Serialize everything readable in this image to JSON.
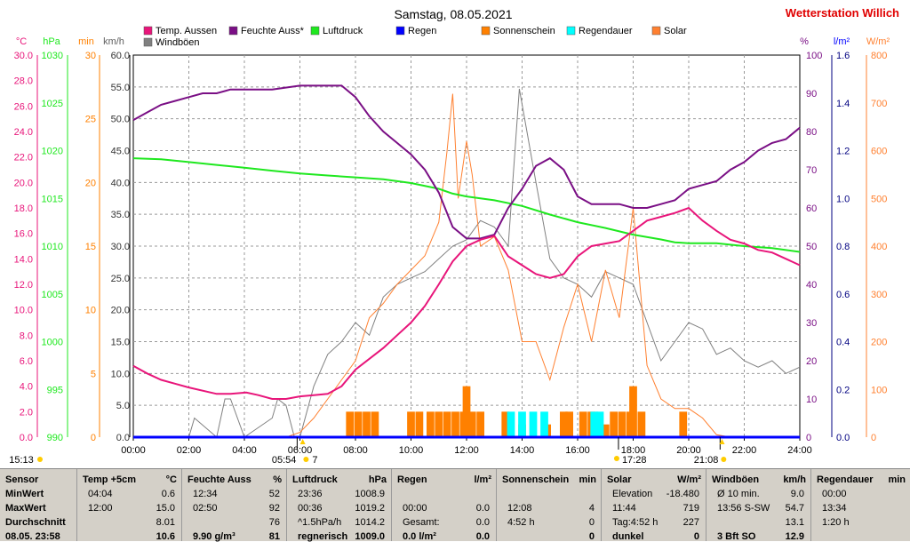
{
  "title": "Samstag, 08.05.2021",
  "station": "Wetterstation Willich",
  "colors": {
    "temp": "#e8157a",
    "humidity": "#7a0f85",
    "pressure": "#1fe81f",
    "rain": "#0000ff",
    "sunshine": "#ff8000",
    "raindur": "#00ffff",
    "solar": "#ff8030",
    "wind": "#808080",
    "titlered": "#e00000"
  },
  "legend": [
    {
      "label": "Temp. Aussen",
      "color": "#e8157a"
    },
    {
      "label": "Feuchte Auss*",
      "color": "#7a0f85"
    },
    {
      "label": "Luftdruck",
      "color": "#1fe81f"
    },
    {
      "label": "Regen",
      "color": "#0000ff"
    },
    {
      "label": "Sonnenschein",
      "color": "#ff8000"
    },
    {
      "label": "Regendauer",
      "color": "#00ffff"
    },
    {
      "label": "Solar",
      "color": "#ff8030"
    },
    {
      "label": "Windböen",
      "color": "#808080"
    }
  ],
  "axes": {
    "left_units": [
      "°C",
      "hPa",
      "min",
      "km/h"
    ],
    "right_units": [
      "%",
      "l/m²",
      "W/m²"
    ],
    "temp_ticks": [
      "30.0",
      "28.0",
      "26.0",
      "24.0",
      "22.0",
      "20.0",
      "18.0",
      "16.0",
      "14.0",
      "12.0",
      "10.0",
      "8.0",
      "6.0",
      "4.0",
      "2.0",
      "0.0"
    ],
    "press_ticks": [
      "1030",
      "1025",
      "1020",
      "1015",
      "1010",
      "1005",
      "1000",
      "995",
      "990"
    ],
    "min_ticks": [
      "30",
      "25",
      "20",
      "15",
      "10",
      "5",
      "0"
    ],
    "kmh_ticks": [
      "60.0",
      "55.0",
      "50.0",
      "45.0",
      "40.0",
      "35.0",
      "30.0",
      "25.0",
      "20.0",
      "15.0",
      "10.0",
      "5.0",
      "0.0"
    ],
    "hum_ticks": [
      "100",
      "90",
      "80",
      "70",
      "60",
      "50",
      "40",
      "30",
      "20",
      "10",
      "0"
    ],
    "rain_ticks": [
      "1.6",
      "1.4",
      "1.2",
      "1.0",
      "0.8",
      "0.6",
      "0.4",
      "0.2",
      "0.0"
    ],
    "solar_ticks": [
      "800",
      "700",
      "600",
      "500",
      "400",
      "300",
      "200",
      "100",
      "0"
    ],
    "x_ticks": [
      "00:00",
      "02:00",
      "04:00",
      "06:00",
      "08:00",
      "10:00",
      "12:00",
      "14:00",
      "16:00",
      "18:00",
      "20:00",
      "22:00",
      "24:00"
    ]
  },
  "markers": {
    "now": "15:13",
    "sunrise": "05:54",
    "sunrise_extra": "7",
    "moonset": "17:28",
    "sunset": "21:08"
  },
  "chart_data": {
    "type": "line",
    "x_range": [
      "00:00",
      "24:00"
    ],
    "series": [
      {
        "name": "Temp. Aussen",
        "unit": "°C",
        "ylim": [
          0,
          30
        ],
        "x": [
          0,
          0.5,
          1,
          1.5,
          2,
          3,
          3.5,
          4.07,
          4.5,
          5,
          5.5,
          6,
          6.5,
          7,
          7.5,
          8,
          9,
          9.5,
          10,
          10.5,
          11,
          11.5,
          12,
          12.5,
          13,
          13.5,
          14,
          14.5,
          15,
          15.5,
          16,
          16.5,
          17,
          17.5,
          18,
          18.5,
          19,
          19.5,
          20,
          20.5,
          21,
          21.5,
          22,
          22.5,
          23,
          23.5,
          24
        ],
        "y": [
          5.6,
          5.0,
          4.5,
          4.2,
          3.9,
          3.4,
          3.4,
          3.5,
          3.3,
          3.0,
          3.0,
          3.2,
          3.3,
          3.4,
          4.0,
          5.3,
          7.0,
          8.0,
          9.0,
          10.3,
          12.0,
          13.8,
          15.0,
          15.5,
          15.8,
          14.2,
          13.5,
          12.8,
          12.5,
          12.8,
          14.2,
          15.0,
          15.2,
          15.4,
          16.2,
          17.0,
          17.3,
          17.6,
          18.0,
          17.0,
          16.2,
          15.5,
          15.2,
          14.7,
          14.5,
          14.0,
          13.5
        ]
      },
      {
        "name": "Feuchte Auss*",
        "unit": "%",
        "ylim": [
          0,
          100
        ],
        "x": [
          0,
          0.5,
          1,
          1.5,
          2,
          2.5,
          3,
          3.5,
          4,
          5,
          6,
          6.5,
          7,
          7.5,
          8,
          8.5,
          9,
          9.5,
          10,
          10.5,
          11,
          11.5,
          12,
          12.5,
          13,
          13.5,
          14,
          14.5,
          15,
          15.5,
          16,
          16.5,
          17,
          17.5,
          18,
          18.5,
          19,
          19.5,
          20,
          20.5,
          21,
          21.5,
          22,
          22.5,
          23,
          23.5,
          24
        ],
        "y": [
          83,
          85,
          87,
          88,
          89,
          90,
          90,
          91,
          91,
          91,
          92,
          92,
          92,
          92,
          89,
          84,
          80,
          77,
          74,
          70,
          64,
          55,
          52,
          52,
          53,
          60,
          65,
          71,
          73,
          70,
          63,
          61,
          61,
          61,
          60,
          60,
          61,
          62,
          65,
          66,
          67,
          70,
          72,
          75,
          77,
          78,
          81
        ]
      },
      {
        "name": "Luftdruck",
        "unit": "hPa",
        "ylim": [
          990,
          1030
        ],
        "x": [
          0,
          1,
          2,
          3,
          4,
          5,
          6,
          7,
          8,
          9,
          10,
          11,
          11.5,
          12,
          13,
          14,
          15,
          16,
          17,
          18,
          19,
          19.5,
          20,
          21,
          22,
          23,
          24
        ],
        "y": [
          1019.2,
          1019.1,
          1018.8,
          1018.5,
          1018.2,
          1017.9,
          1017.6,
          1017.4,
          1017.2,
          1017.0,
          1016.6,
          1016.0,
          1015.5,
          1015.2,
          1014.8,
          1014.2,
          1013.3,
          1012.5,
          1011.9,
          1011.2,
          1010.7,
          1010.4,
          1010.3,
          1010.3,
          1010.0,
          1009.8,
          1009.4
        ]
      },
      {
        "name": "Regen",
        "unit": "l/m²",
        "ylim": [
          0,
          1.6
        ],
        "x": [
          0,
          24
        ],
        "y": [
          0.0,
          0.0
        ]
      },
      {
        "name": "Solar",
        "unit": "W/m²",
        "ylim": [
          0,
          800
        ],
        "x": [
          5.5,
          6,
          6.5,
          7,
          7.5,
          8,
          8.5,
          9,
          9.5,
          10,
          10.5,
          11,
          11.3,
          11.5,
          11.7,
          12,
          12.2,
          12.5,
          13,
          13.5,
          14,
          14.5,
          15,
          15.5,
          16,
          16.5,
          17,
          17.5,
          18,
          18.5,
          19,
          19.5,
          20,
          20.5,
          21,
          21.5
        ],
        "y": [
          0,
          10,
          40,
          80,
          120,
          160,
          250,
          280,
          320,
          350,
          380,
          450,
          600,
          719,
          500,
          620,
          550,
          400,
          420,
          350,
          200,
          200,
          120,
          230,
          320,
          200,
          350,
          250,
          480,
          150,
          80,
          60,
          60,
          40,
          5,
          0
        ]
      },
      {
        "name": "Windböen",
        "unit": "km/h",
        "ylim": [
          0,
          60
        ],
        "x": [
          0,
          2,
          2.2,
          3,
          3.3,
          3.5,
          4,
          5,
          5.2,
          5.5,
          5.8,
          6,
          6.5,
          7,
          7.5,
          8,
          8.5,
          9,
          9.5,
          10,
          10.5,
          11,
          11.5,
          12,
          12.5,
          13,
          13.5,
          13.9,
          14.5,
          15,
          15.5,
          16,
          16.5,
          17,
          17.5,
          18,
          18.5,
          19,
          19.5,
          20,
          20.5,
          21,
          21.5,
          22,
          22.5,
          23,
          23.5,
          24
        ],
        "y": [
          0,
          0,
          3,
          0,
          6,
          6,
          0,
          3,
          6,
          5,
          0,
          0,
          8,
          13,
          15,
          18,
          16,
          22,
          24,
          25,
          26,
          28,
          30,
          31,
          34,
          33,
          30,
          54.7,
          40,
          28,
          25,
          24,
          22,
          26,
          25,
          24,
          18,
          12,
          15,
          18,
          17,
          13,
          14,
          12,
          11,
          12,
          10,
          11
        ]
      }
    ],
    "bars": [
      {
        "name": "Sonnenschein",
        "unit": "min",
        "ylim": [
          0,
          30
        ],
        "x": [
          7.8,
          8.1,
          8.4,
          8.7,
          10.0,
          10.3,
          10.7,
          11.0,
          11.3,
          11.6,
          11.9,
          12.0,
          12.2,
          12.5,
          13.4,
          14.0,
          14.9,
          15.5,
          15.7,
          16.2,
          16.5,
          17.0,
          17.3,
          17.6,
          17.9,
          18.0,
          18.3,
          19.8
        ],
        "values": [
          2,
          2,
          2,
          2,
          2,
          2,
          2,
          2,
          2,
          2,
          2,
          4,
          2,
          2,
          2,
          1,
          1,
          2,
          2,
          2,
          2,
          1,
          2,
          2,
          2,
          4,
          2,
          2
        ]
      },
      {
        "name": "Regendauer",
        "unit": "min",
        "ylim": [
          0,
          30
        ],
        "x": [
          13.6,
          14.0,
          14.4,
          14.8,
          16.6,
          16.8
        ],
        "values": [
          2,
          2,
          2,
          2,
          2,
          2
        ]
      }
    ]
  },
  "stats": {
    "row_labels": [
      "Sensor",
      "MinWert",
      "MaxWert",
      "Durchschnitt",
      "08.05. 23:58"
    ],
    "columns": [
      {
        "header": "Temp +5cm",
        "unit": "°C",
        "rows": [
          [
            "04:04",
            "0.6"
          ],
          [
            "12:00",
            "15.0"
          ],
          [
            "",
            "8.01"
          ],
          [
            "",
            "10.6"
          ]
        ]
      },
      {
        "header": "Feuchte Auss",
        "unit": "%",
        "rows": [
          [
            "12:34",
            "52"
          ],
          [
            "02:50",
            "92"
          ],
          [
            "",
            "76"
          ],
          [
            "9.90 g/m³",
            "81"
          ]
        ]
      },
      {
        "header": "Luftdruck",
        "unit": "hPa",
        "rows": [
          [
            "23:36",
            "1008.9"
          ],
          [
            "00:36",
            "1019.2"
          ],
          [
            "^1.5hPa/h",
            "1014.2"
          ],
          [
            "regnerisch",
            "1009.0"
          ]
        ]
      },
      {
        "header": "Regen",
        "unit": "l/m²",
        "rows": [
          [
            "",
            ""
          ],
          [
            "00:00",
            "0.0"
          ],
          [
            "Gesamt:",
            "0.0"
          ],
          [
            "0.0 l/m²",
            "0.0"
          ]
        ]
      },
      {
        "header": "Sonnenschein",
        "unit": "min",
        "rows": [
          [
            "",
            ""
          ],
          [
            "12:08",
            "4"
          ],
          [
            "4:52 h",
            "0"
          ],
          [
            "",
            "0"
          ]
        ]
      },
      {
        "header": "Solar",
        "unit": "W/m²",
        "rows": [
          [
            "Elevation",
            "-18.480"
          ],
          [
            "11:44",
            "719"
          ],
          [
            "Tag:4:52 h",
            "227"
          ],
          [
            "dunkel",
            "0"
          ]
        ]
      },
      {
        "header": "Windböen",
        "unit": "km/h",
        "rows": [
          [
            "Ø 10 min.",
            "9.0"
          ],
          [
            "13:56  S-SW",
            "54.7"
          ],
          [
            "",
            "13.1"
          ],
          [
            "3 Bft SO",
            "12.9"
          ]
        ]
      },
      {
        "header": "Regendauer",
        "unit": "min",
        "rows": [
          [
            "00:00",
            ""
          ],
          [
            "13:34",
            ""
          ],
          [
            "1:20 h",
            ""
          ],
          [
            "",
            ""
          ]
        ]
      }
    ]
  }
}
